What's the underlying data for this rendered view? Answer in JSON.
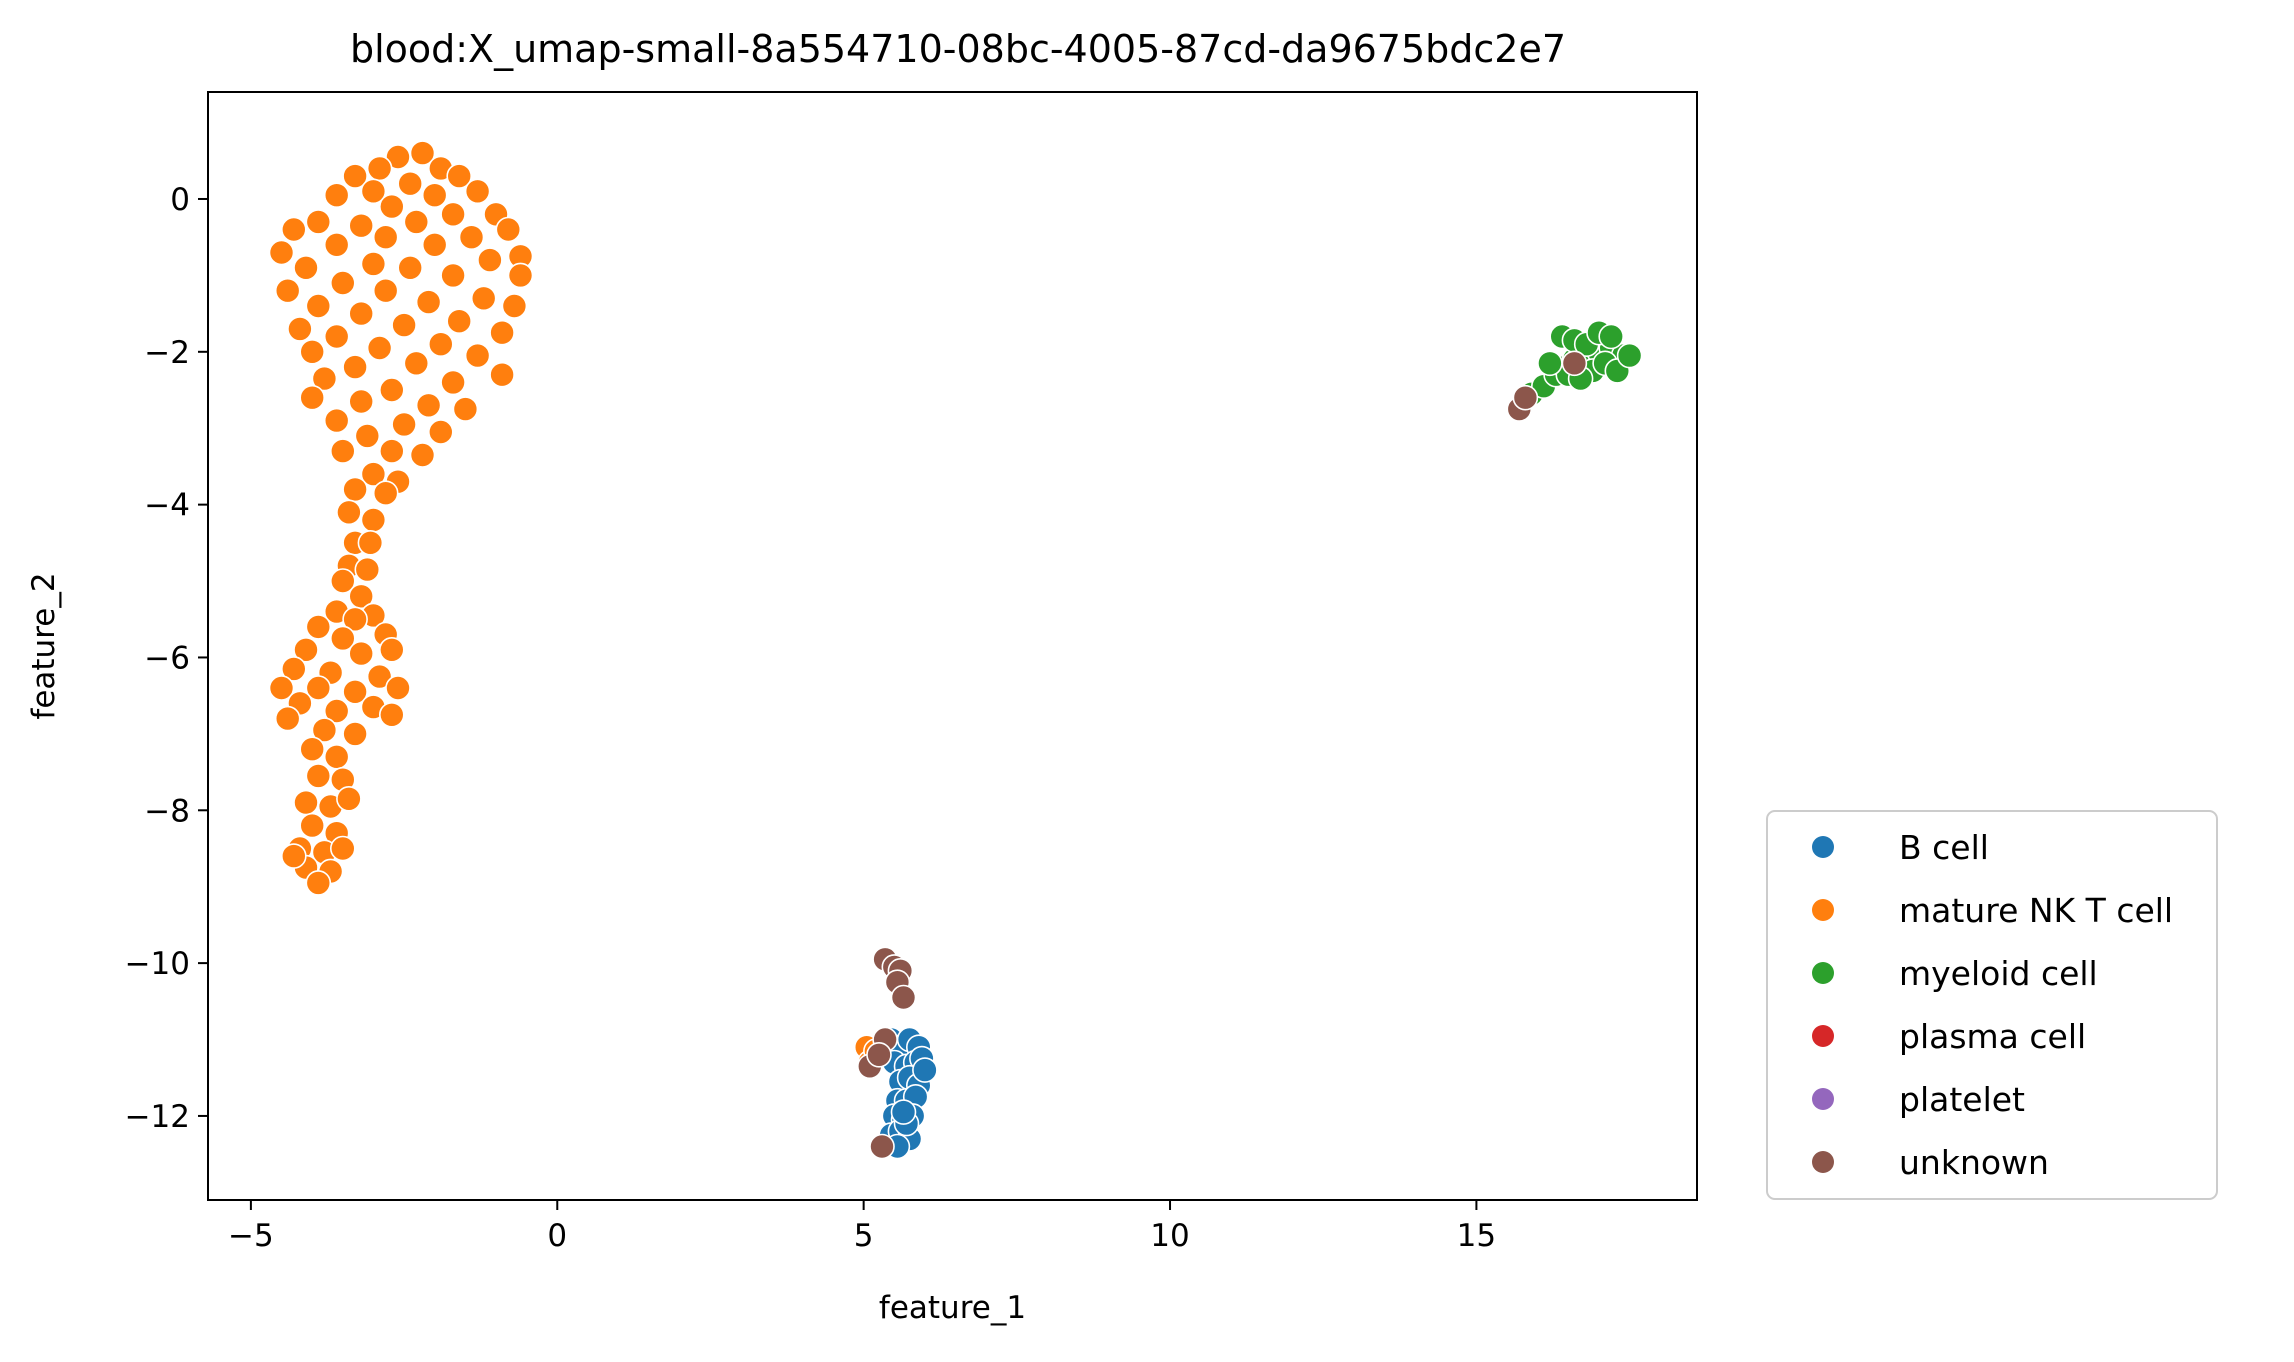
{
  "chart_data": {
    "type": "scatter",
    "title": "blood:X_umap-small-8a554710-08bc-4005-87cd-da9675bdc2e7",
    "xlabel": "feature_1",
    "ylabel": "feature_2",
    "xlim": [
      -5.7,
      18.6
    ],
    "ylim": [
      -13.1,
      1.4
    ],
    "xticks": [
      -5,
      0,
      5,
      10,
      15
    ],
    "yticks": [
      0,
      -2,
      -4,
      -6,
      -8,
      -10,
      -12
    ],
    "xtick_labels": [
      "−5",
      "0",
      "5",
      "10",
      "15"
    ],
    "ytick_labels": [
      "0",
      "−2",
      "−4",
      "−6",
      "−8",
      "−10",
      "−12"
    ],
    "grid": false,
    "legend_position": "outside-lower-right",
    "series": [
      {
        "name": "B cell",
        "color": "#1f77b4",
        "points": [
          [
            5.45,
            -11.0
          ],
          [
            5.6,
            -11.1
          ],
          [
            5.75,
            -11.0
          ],
          [
            5.9,
            -11.1
          ],
          [
            5.5,
            -11.3
          ],
          [
            5.7,
            -11.35
          ],
          [
            5.85,
            -11.3
          ],
          [
            5.95,
            -11.25
          ],
          [
            5.6,
            -11.55
          ],
          [
            5.75,
            -11.5
          ],
          [
            5.9,
            -11.6
          ],
          [
            5.55,
            -11.8
          ],
          [
            5.7,
            -11.8
          ],
          [
            5.85,
            -11.75
          ],
          [
            5.5,
            -12.0
          ],
          [
            5.65,
            -12.05
          ],
          [
            5.8,
            -12.0
          ],
          [
            5.45,
            -12.25
          ],
          [
            5.6,
            -12.2
          ],
          [
            5.75,
            -12.3
          ],
          [
            5.55,
            -12.4
          ],
          [
            5.7,
            -12.1
          ],
          [
            6.0,
            -11.4
          ],
          [
            5.65,
            -11.95
          ]
        ]
      },
      {
        "name": "mature NK T cell",
        "color": "#ff7f0e",
        "points": [
          [
            -2.2,
            0.6
          ],
          [
            -2.6,
            0.55
          ],
          [
            -1.9,
            0.4
          ],
          [
            -2.9,
            0.4
          ],
          [
            -1.6,
            0.3
          ],
          [
            -3.3,
            0.3
          ],
          [
            -2.4,
            0.2
          ],
          [
            -3.0,
            0.1
          ],
          [
            -1.3,
            0.1
          ],
          [
            -2.0,
            0.05
          ],
          [
            -3.6,
            0.05
          ],
          [
            -2.7,
            -0.1
          ],
          [
            -1.0,
            -0.2
          ],
          [
            -1.7,
            -0.2
          ],
          [
            -3.9,
            -0.3
          ],
          [
            -2.3,
            -0.3
          ],
          [
            -3.2,
            -0.35
          ],
          [
            -4.3,
            -0.4
          ],
          [
            -0.8,
            -0.4
          ],
          [
            -1.4,
            -0.5
          ],
          [
            -2.8,
            -0.5
          ],
          [
            -3.6,
            -0.6
          ],
          [
            -2.0,
            -0.6
          ],
          [
            -4.5,
            -0.7
          ],
          [
            -0.6,
            -0.75
          ],
          [
            -1.1,
            -0.8
          ],
          [
            -3.0,
            -0.85
          ],
          [
            -4.1,
            -0.9
          ],
          [
            -2.4,
            -0.9
          ],
          [
            -1.7,
            -1.0
          ],
          [
            -0.6,
            -1.0
          ],
          [
            -3.5,
            -1.1
          ],
          [
            -4.4,
            -1.2
          ],
          [
            -2.8,
            -1.2
          ],
          [
            -1.2,
            -1.3
          ],
          [
            -2.1,
            -1.35
          ],
          [
            -0.7,
            -1.4
          ],
          [
            -3.9,
            -1.4
          ],
          [
            -3.2,
            -1.5
          ],
          [
            -1.6,
            -1.6
          ],
          [
            -2.5,
            -1.65
          ],
          [
            -4.2,
            -1.7
          ],
          [
            -0.9,
            -1.75
          ],
          [
            -3.6,
            -1.8
          ],
          [
            -1.9,
            -1.9
          ],
          [
            -2.9,
            -1.95
          ],
          [
            -4.0,
            -2.0
          ],
          [
            -1.3,
            -2.05
          ],
          [
            -2.3,
            -2.15
          ],
          [
            -3.3,
            -2.2
          ],
          [
            -0.9,
            -2.3
          ],
          [
            -3.8,
            -2.35
          ],
          [
            -1.7,
            -2.4
          ],
          [
            -2.7,
            -2.5
          ],
          [
            -4.0,
            -2.6
          ],
          [
            -3.2,
            -2.65
          ],
          [
            -2.1,
            -2.7
          ],
          [
            -1.5,
            -2.75
          ],
          [
            -3.6,
            -2.9
          ],
          [
            -2.5,
            -2.95
          ],
          [
            -1.9,
            -3.05
          ],
          [
            -3.1,
            -3.1
          ],
          [
            -3.5,
            -3.3
          ],
          [
            -2.7,
            -3.3
          ],
          [
            -2.2,
            -3.35
          ],
          [
            -3.0,
            -3.6
          ],
          [
            -2.6,
            -3.7
          ],
          [
            -3.3,
            -3.8
          ],
          [
            -2.8,
            -3.85
          ],
          [
            -3.4,
            -4.1
          ],
          [
            -3.0,
            -4.2
          ],
          [
            -3.3,
            -4.5
          ],
          [
            -3.05,
            -4.5
          ],
          [
            -3.4,
            -4.8
          ],
          [
            -3.1,
            -4.85
          ],
          [
            -3.5,
            -5.0
          ],
          [
            -3.2,
            -5.2
          ],
          [
            -3.6,
            -5.4
          ],
          [
            -3.0,
            -5.45
          ],
          [
            -3.3,
            -5.5
          ],
          [
            -3.9,
            -5.6
          ],
          [
            -3.5,
            -5.75
          ],
          [
            -2.8,
            -5.7
          ],
          [
            -4.1,
            -5.9
          ],
          [
            -3.2,
            -5.95
          ],
          [
            -2.7,
            -5.9
          ],
          [
            -4.3,
            -6.15
          ],
          [
            -3.7,
            -6.2
          ],
          [
            -2.9,
            -6.25
          ],
          [
            -4.5,
            -6.4
          ],
          [
            -3.9,
            -6.4
          ],
          [
            -3.3,
            -6.45
          ],
          [
            -2.6,
            -6.4
          ],
          [
            -4.2,
            -6.6
          ],
          [
            -3.6,
            -6.7
          ],
          [
            -3.0,
            -6.65
          ],
          [
            -2.7,
            -6.75
          ],
          [
            -4.4,
            -6.8
          ],
          [
            -3.8,
            -6.95
          ],
          [
            -3.3,
            -7.0
          ],
          [
            -4.0,
            -7.2
          ],
          [
            -3.6,
            -7.3
          ],
          [
            -3.9,
            -7.55
          ],
          [
            -3.5,
            -7.6
          ],
          [
            -4.1,
            -7.9
          ],
          [
            -3.7,
            -7.95
          ],
          [
            -3.4,
            -7.85
          ],
          [
            -4.0,
            -8.2
          ],
          [
            -3.6,
            -8.3
          ],
          [
            -4.2,
            -8.5
          ],
          [
            -3.8,
            -8.55
          ],
          [
            -3.5,
            -8.5
          ],
          [
            -4.1,
            -8.75
          ],
          [
            -3.7,
            -8.8
          ],
          [
            -3.9,
            -8.95
          ],
          [
            -4.3,
            -8.6
          ]
        ]
      },
      {
        "name": "myeloid cell",
        "color": "#2ca02c",
        "points": [
          [
            15.9,
            -2.55
          ],
          [
            16.1,
            -2.45
          ],
          [
            16.3,
            -2.3
          ],
          [
            16.45,
            -2.2
          ],
          [
            16.6,
            -2.1
          ],
          [
            16.8,
            -2.05
          ],
          [
            17.0,
            -2.0
          ],
          [
            17.2,
            -1.95
          ],
          [
            17.4,
            -2.05
          ],
          [
            16.4,
            -1.8
          ],
          [
            16.6,
            -1.85
          ],
          [
            16.8,
            -1.9
          ],
          [
            17.0,
            -1.75
          ],
          [
            17.2,
            -1.8
          ],
          [
            16.5,
            -2.3
          ],
          [
            16.9,
            -2.25
          ],
          [
            17.1,
            -2.15
          ],
          [
            17.3,
            -2.25
          ],
          [
            16.7,
            -2.35
          ],
          [
            16.2,
            -2.15
          ],
          [
            17.5,
            -2.05
          ]
        ]
      },
      {
        "name": "plasma cell",
        "color": "#d62728",
        "points": []
      },
      {
        "name": "platelet",
        "color": "#9467bd",
        "points": []
      },
      {
        "name": "unknown",
        "color": "#8c564b",
        "points": [
          [
            15.7,
            -2.75
          ],
          [
            15.8,
            -2.6
          ],
          [
            16.6,
            -2.15
          ],
          [
            5.35,
            -9.95
          ],
          [
            5.5,
            -10.05
          ],
          [
            5.6,
            -10.1
          ],
          [
            5.55,
            -10.25
          ],
          [
            5.65,
            -10.45
          ],
          [
            5.1,
            -11.35
          ],
          [
            5.35,
            -11.0
          ],
          [
            5.3,
            -12.4
          ],
          [
            5.25,
            -11.2
          ]
        ]
      }
    ],
    "extra_orange_points": [
      [
        5.05,
        -11.1
      ],
      [
        5.1,
        -11.3
      ],
      [
        5.2,
        -11.15
      ]
    ]
  }
}
